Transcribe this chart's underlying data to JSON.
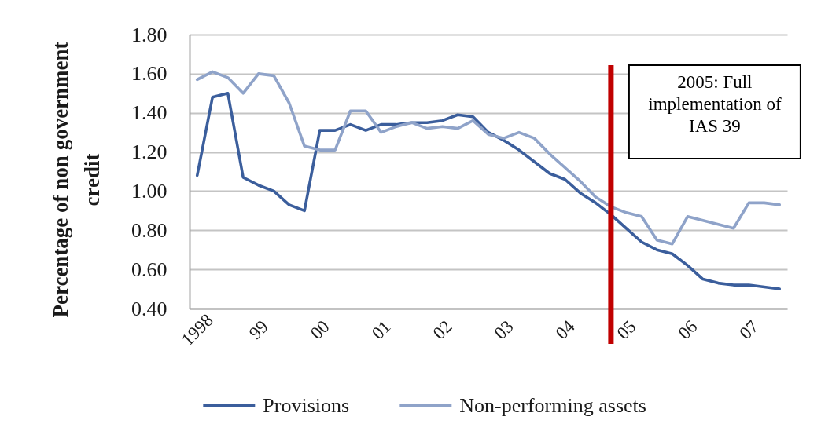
{
  "chart_data": {
    "type": "line",
    "ylabel": "Percentage of non government credit",
    "x": [
      1998,
      1998.25,
      1998.5,
      1998.75,
      1999,
      1999.25,
      1999.5,
      1999.75,
      2000,
      2000.25,
      2000.5,
      2000.75,
      2001,
      2001.25,
      2001.5,
      2001.75,
      2002,
      2002.25,
      2002.5,
      2002.75,
      2003,
      2003.25,
      2003.5,
      2003.75,
      2004,
      2004.25,
      2004.5,
      2004.75,
      2005,
      2005.25,
      2005.5,
      2005.75,
      2006,
      2006.25,
      2006.5,
      2006.75,
      2007,
      2007.25,
      2007.5
    ],
    "xlim": [
      1997.875,
      2007.625
    ],
    "xticks": [
      1998,
      {
        "value": 1999,
        "label": "99"
      },
      {
        "value": 2000,
        "label": "00"
      },
      {
        "value": 2001,
        "label": "01"
      },
      {
        "value": 2002,
        "label": "02"
      },
      {
        "value": 2003,
        "label": "03"
      },
      {
        "value": 2004,
        "label": "04"
      },
      {
        "value": 2005,
        "label": "05"
      },
      {
        "value": 2006,
        "label": "06"
      },
      {
        "value": 2007,
        "label": "07"
      }
    ],
    "ylim": [
      0.4,
      1.8
    ],
    "yticks": [
      {
        "value": 0.4,
        "label": "0.40"
      },
      {
        "value": 0.6,
        "label": "0.60"
      },
      {
        "value": 0.8,
        "label": "0.80"
      },
      {
        "value": 1.0,
        "label": "1.00"
      },
      {
        "value": 1.2,
        "label": "1.20"
      },
      {
        "value": 1.4,
        "label": "1.40"
      },
      {
        "value": 1.6,
        "label": "1.60"
      },
      {
        "value": 1.8,
        "label": "1.80"
      }
    ],
    "grid": "y",
    "legend": "bottom",
    "series": [
      {
        "name": "Provisions",
        "color": "#3b5e9c",
        "values": [
          1.08,
          1.48,
          1.5,
          1.07,
          1.03,
          1.0,
          0.93,
          0.9,
          1.31,
          1.31,
          1.34,
          1.31,
          1.34,
          1.34,
          1.35,
          1.35,
          1.36,
          1.39,
          1.38,
          1.3,
          1.26,
          1.21,
          1.15,
          1.09,
          1.06,
          0.99,
          0.94,
          0.88,
          0.81,
          0.74,
          0.7,
          0.68,
          0.62,
          0.55,
          0.53,
          0.52,
          0.52,
          0.51,
          0.5
        ]
      },
      {
        "name": "Non-performing assets",
        "color": "#8fa3c9",
        "values": [
          1.57,
          1.61,
          1.58,
          1.5,
          1.6,
          1.59,
          1.45,
          1.23,
          1.21,
          1.21,
          1.41,
          1.41,
          1.3,
          1.33,
          1.35,
          1.32,
          1.33,
          1.32,
          1.36,
          1.29,
          1.27,
          1.3,
          1.27,
          1.19,
          1.12,
          1.05,
          0.97,
          0.92,
          0.89,
          0.87,
          0.75,
          0.73,
          0.87,
          0.85,
          0.83,
          0.81,
          0.94,
          0.94,
          0.93
        ]
      }
    ],
    "ref_lines": [
      {
        "axis": "x",
        "value": 2004.75,
        "label": "2005: Full implementation of IAS 39",
        "color": "#c00000"
      }
    ]
  }
}
